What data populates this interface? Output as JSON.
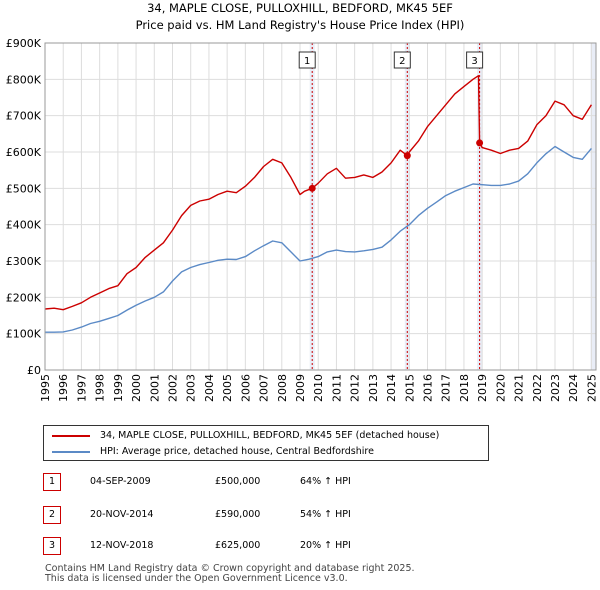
{
  "title_line1": "34, MAPLE CLOSE, PULLOXHILL, BEDFORD, MK45 5EF",
  "title_line2": "Price paid vs. HM Land Registry's House Price Index (HPI)",
  "chart_data": {
    "type": "line",
    "xlim": [
      1995,
      2025.25
    ],
    "ylim": [
      0,
      900000
    ],
    "yticks": [
      0,
      100000,
      200000,
      300000,
      400000,
      500000,
      600000,
      700000,
      800000,
      900000
    ],
    "ytick_labels": [
      "£0",
      "£100K",
      "£200K",
      "£300K",
      "£400K",
      "£500K",
      "£600K",
      "£700K",
      "£800K",
      "£900K"
    ],
    "xticks": [
      1995,
      1996,
      1997,
      1998,
      1999,
      2000,
      2001,
      2002,
      2003,
      2004,
      2005,
      2006,
      2007,
      2008,
      2009,
      2010,
      2011,
      2012,
      2013,
      2014,
      2015,
      2016,
      2017,
      2018,
      2019,
      2020,
      2021,
      2022,
      2023,
      2024,
      2025
    ],
    "colors": {
      "property": "#cc0000",
      "hpi": "#5b8ac6",
      "grid": "#dddddd",
      "shade": "#e9edf7",
      "event_line": "#cc0000"
    },
    "series": [
      {
        "name": "34, MAPLE CLOSE, PULLOXHILL, BEDFORD, MK45 5EF (detached house)",
        "x": [
          1995.0,
          1995.5,
          1996.0,
          1996.5,
          1997.0,
          1997.5,
          1998.0,
          1998.5,
          1999.0,
          1999.5,
          2000.0,
          2000.5,
          2001.0,
          2001.5,
          2002.0,
          2002.5,
          2003.0,
          2003.5,
          2004.0,
          2004.5,
          2005.0,
          2005.5,
          2006.0,
          2006.5,
          2007.0,
          2007.5,
          2008.0,
          2008.5,
          2009.0,
          2009.25,
          2009.67,
          2010.0,
          2010.5,
          2011.0,
          2011.5,
          2012.0,
          2012.5,
          2013.0,
          2013.5,
          2014.0,
          2014.5,
          2014.89,
          2015.0,
          2015.5,
          2016.0,
          2016.5,
          2017.0,
          2017.5,
          2018.0,
          2018.5,
          2018.8,
          2018.86,
          2019.0,
          2019.5,
          2020.0,
          2020.5,
          2021.0,
          2021.5,
          2022.0,
          2022.5,
          2023.0,
          2023.5,
          2024.0,
          2024.5,
          2025.0
        ],
        "values": [
          168000,
          170000,
          166000,
          175000,
          185000,
          200000,
          212000,
          224000,
          232000,
          265000,
          282000,
          310000,
          330000,
          350000,
          385000,
          425000,
          453000,
          465000,
          470000,
          483000,
          492000,
          488000,
          506000,
          530000,
          560000,
          580000,
          570000,
          530000,
          483000,
          492000,
          500000,
          514000,
          540000,
          555000,
          528000,
          530000,
          537000,
          530000,
          545000,
          570000,
          605000,
          590000,
          600000,
          630000,
          670000,
          700000,
          730000,
          760000,
          780000,
          800000,
          810000,
          625000,
          612000,
          605000,
          596000,
          605000,
          610000,
          630000,
          675000,
          700000,
          740000,
          730000,
          700000,
          690000,
          730000
        ]
      },
      {
        "name": "HPI: Average price, detached house, Central Bedfordshire",
        "x": [
          1995.0,
          1995.5,
          1996.0,
          1996.5,
          1997.0,
          1997.5,
          1998.0,
          1998.5,
          1999.0,
          1999.5,
          2000.0,
          2000.5,
          2001.0,
          2001.5,
          2002.0,
          2002.5,
          2003.0,
          2003.5,
          2004.0,
          2004.5,
          2005.0,
          2005.5,
          2006.0,
          2006.5,
          2007.0,
          2007.5,
          2008.0,
          2008.5,
          2009.0,
          2009.5,
          2010.0,
          2010.5,
          2011.0,
          2011.5,
          2012.0,
          2012.5,
          2013.0,
          2013.5,
          2014.0,
          2014.5,
          2015.0,
          2015.5,
          2016.0,
          2016.5,
          2017.0,
          2017.5,
          2018.0,
          2018.5,
          2019.0,
          2019.5,
          2020.0,
          2020.5,
          2021.0,
          2021.5,
          2022.0,
          2022.5,
          2023.0,
          2023.5,
          2024.0,
          2024.5,
          2025.0
        ],
        "values": [
          104000,
          104000,
          105000,
          110000,
          118000,
          128000,
          134000,
          142000,
          150000,
          165000,
          178000,
          190000,
          200000,
          215000,
          245000,
          270000,
          282000,
          290000,
          296000,
          302000,
          305000,
          304000,
          312000,
          328000,
          342000,
          355000,
          350000,
          325000,
          300000,
          305000,
          312000,
          325000,
          330000,
          326000,
          325000,
          328000,
          332000,
          338000,
          358000,
          382000,
          400000,
          425000,
          445000,
          462000,
          480000,
          492000,
          502000,
          512000,
          510000,
          508000,
          508000,
          512000,
          520000,
          540000,
          570000,
          595000,
          615000,
          600000,
          585000,
          580000,
          610000
        ]
      }
    ],
    "sales": [
      {
        "label": "1",
        "x": 2009.67,
        "value": 500000
      },
      {
        "label": "2",
        "x": 2014.89,
        "value": 590000
      },
      {
        "label": "3",
        "x": 2018.86,
        "value": 625000
      }
    ]
  },
  "legend": {
    "property": "34, MAPLE CLOSE, PULLOXHILL, BEDFORD, MK45 5EF (detached house)",
    "hpi": "HPI: Average price, detached house, Central Bedfordshire"
  },
  "transactions": [
    {
      "num": "1",
      "date": "04-SEP-2009",
      "price": "£500,000",
      "hpi": "64% ↑ HPI"
    },
    {
      "num": "2",
      "date": "20-NOV-2014",
      "price": "£590,000",
      "hpi": "54% ↑ HPI"
    },
    {
      "num": "3",
      "date": "12-NOV-2018",
      "price": "£625,000",
      "hpi": "20% ↑ HPI"
    }
  ],
  "footer": {
    "line1": "Contains HM Land Registry data © Crown copyright and database right 2025.",
    "line2": "This data is licensed under the Open Government Licence v3.0."
  }
}
